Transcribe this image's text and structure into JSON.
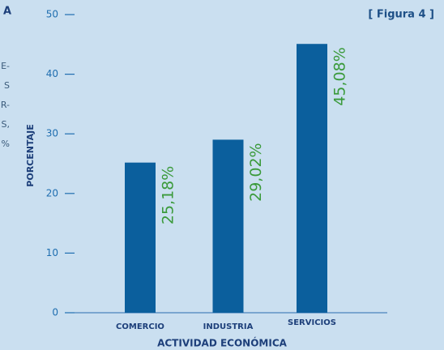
{
  "side_text": [
    "A",
    "E-",
    "S",
    "R-",
    "S,",
    "%"
  ],
  "figure_label": "[ Figura 4 ]",
  "chart_data": {
    "type": "bar",
    "categories": [
      "COMERCIO",
      "INDUSTRIA",
      "SERVICIOS"
    ],
    "values": [
      25.18,
      29.02,
      45.08
    ],
    "value_labels": [
      "25,18%",
      "29,02%",
      "45,08%"
    ],
    "color": "#0b5f9d",
    "label_color": "#3a9a3a",
    "ylabel": "PORCENTAJE",
    "xlabel": "ACTIVIDAD ECONÓMICA",
    "ylim": [
      0,
      50
    ],
    "yticks": [
      0,
      10,
      20,
      30,
      40,
      50
    ]
  }
}
